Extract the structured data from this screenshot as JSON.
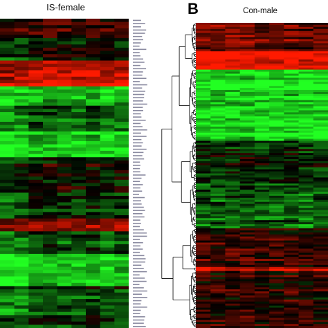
{
  "titles": {
    "left": "IS-female",
    "right": "Con-male",
    "panel_letter": "B"
  },
  "colors": {
    "low": "#22ff22",
    "mid": "#000000",
    "high": "#ff1a00",
    "background": "#ffffff",
    "dendrogram": "#000000"
  },
  "chart_data": [
    {
      "type": "heatmap",
      "title": "IS-female",
      "colormap": "green-black-red",
      "rows": 96,
      "columns": 9,
      "row_labels_visible": true,
      "row_labels_legible": false,
      "value_range": [
        -1,
        1
      ],
      "row_block_profile": [
        {
          "from": 0,
          "to": 6,
          "level": 0.25
        },
        {
          "from": 6,
          "to": 13,
          "level": -0.05
        },
        {
          "from": 13,
          "to": 17,
          "level": 0.55
        },
        {
          "from": 17,
          "to": 21,
          "level": 0.9
        },
        {
          "from": 21,
          "to": 27,
          "level": -0.85
        },
        {
          "from": 27,
          "to": 35,
          "level": -0.45
        },
        {
          "from": 35,
          "to": 43,
          "level": -0.9
        },
        {
          "from": 43,
          "to": 54,
          "level": -0.05
        },
        {
          "from": 54,
          "to": 62,
          "level": -0.35
        },
        {
          "from": 62,
          "to": 66,
          "level": 0.5
        },
        {
          "from": 66,
          "to": 73,
          "level": -0.4
        },
        {
          "from": 73,
          "to": 83,
          "level": -0.8
        },
        {
          "from": 83,
          "to": 96,
          "level": -0.3
        }
      ],
      "column_effects": [
        -0.25,
        -0.15,
        0.15,
        0.2,
        0.1,
        0.05,
        0.2,
        -0.05,
        0.1
      ]
    },
    {
      "type": "heatmap",
      "title": "Con-male",
      "colormap": "green-black-red",
      "rows": 150,
      "columns": 9,
      "row_dendrogram": true,
      "value_range": [
        -1,
        1
      ],
      "row_block_profile": [
        {
          "from": 0,
          "to": 14,
          "level": 0.35
        },
        {
          "from": 14,
          "to": 23,
          "level": 0.95
        },
        {
          "from": 23,
          "to": 58,
          "level": -0.9
        },
        {
          "from": 58,
          "to": 78,
          "level": -0.15
        },
        {
          "from": 78,
          "to": 101,
          "level": -0.35
        },
        {
          "from": 101,
          "to": 120,
          "level": 0.2
        },
        {
          "from": 120,
          "to": 122,
          "level": 0.8
        },
        {
          "from": 122,
          "to": 150,
          "level": 0.1
        }
      ],
      "column_effects": [
        0.1,
        0.05,
        0.1,
        0.15,
        0.0,
        0.05,
        0.1,
        -0.05,
        0.0
      ]
    }
  ]
}
